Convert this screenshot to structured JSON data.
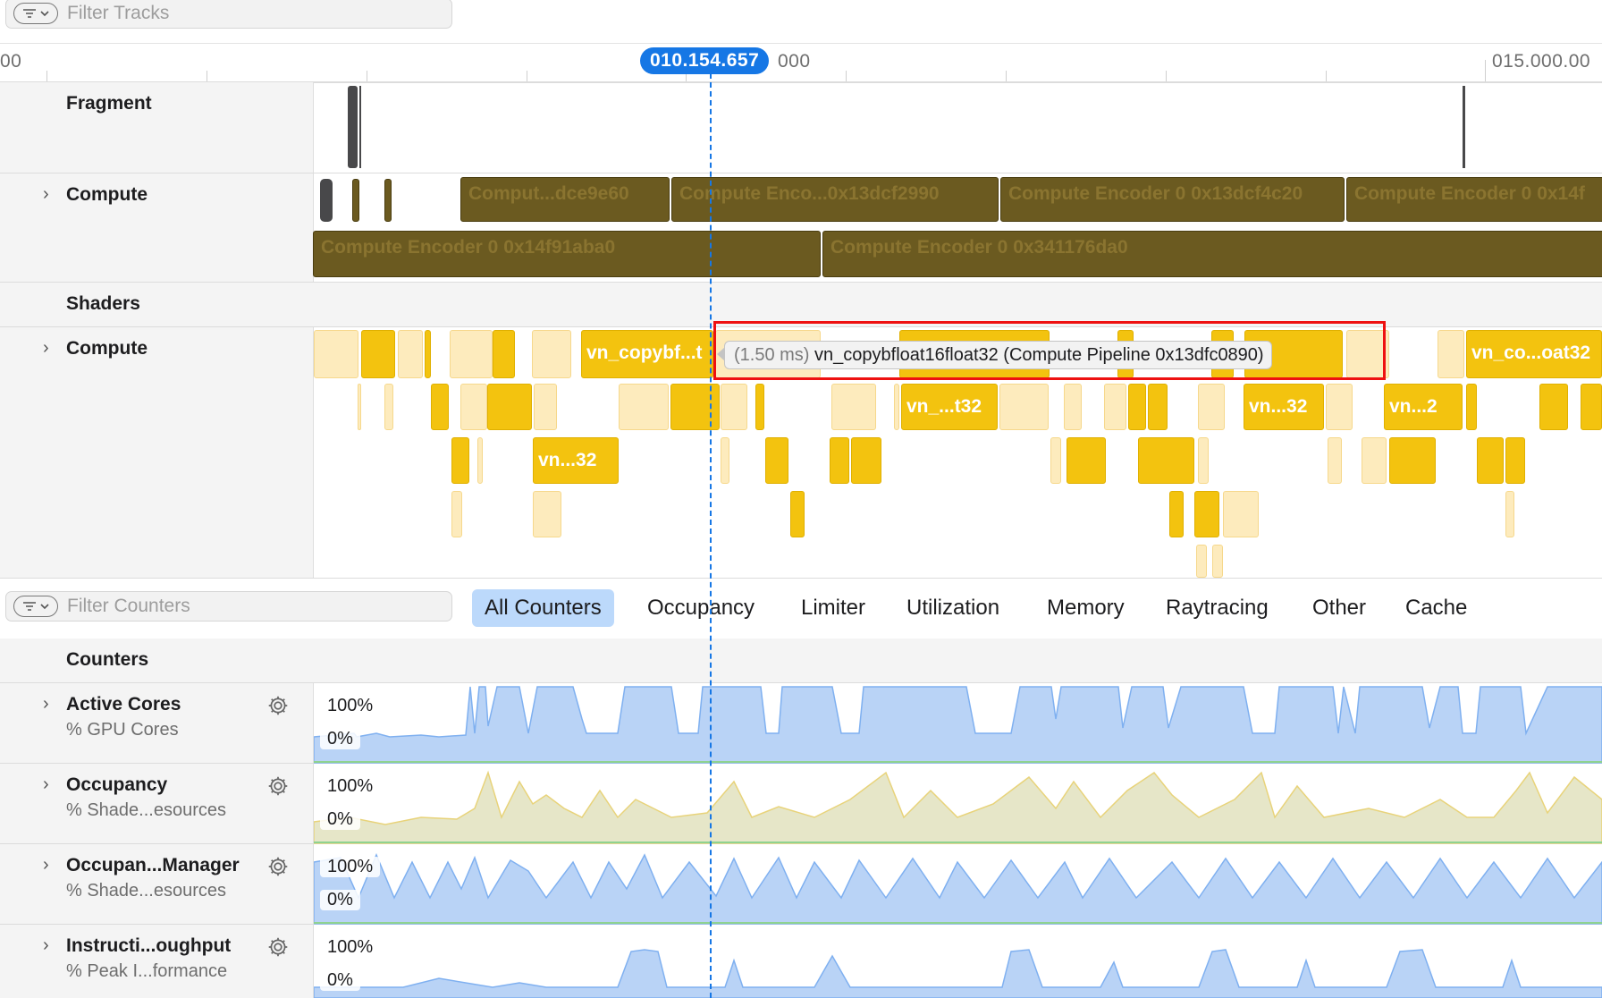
{
  "track_filter": {
    "placeholder": "Filter Tracks"
  },
  "ruler": {
    "left_label": "00",
    "playhead_label": "010.154.657",
    "after_playhead_label": "000",
    "right_label": "015.000.00"
  },
  "tracks": {
    "fragment": {
      "label": "Fragment"
    },
    "compute": {
      "label": "Compute",
      "encoders_row1": [
        "Comput...dce9e60",
        "Compute Enco...0x13dcf2990",
        "Compute Encoder 0 0x13dcf4c20",
        "Compute Encoder 0 0x14f"
      ],
      "encoders_row2": [
        "Compute Encoder 0 0x14f91aba0",
        "Compute Encoder 0 0x341176da0"
      ]
    },
    "shaders": {
      "label": "Shaders"
    },
    "shader_compute": {
      "label": "Compute",
      "labels": [
        "vn_copybf...t",
        "vn_co...oat32",
        "vn_...t32",
        "vn...32",
        "vn...2",
        "vn...32"
      ]
    }
  },
  "tooltip": {
    "duration": "(1.50 ms)",
    "text": "vn_copybfloat16float32 (Compute Pipeline 0x13dfc0890)"
  },
  "counter_filter": {
    "placeholder": "Filter Counters"
  },
  "counter_tabs": [
    "All Counters",
    "Occupancy",
    "Limiter",
    "Utilization",
    "Memory",
    "Raytracing",
    "Other",
    "Cache"
  ],
  "counters": {
    "header": "Counters",
    "rows": [
      {
        "name": "Active Cores",
        "unit": "% GPU Cores",
        "max": "100%",
        "min": "0%"
      },
      {
        "name": "Occupancy",
        "unit": "% Shade...esources",
        "max": "100%",
        "min": "0%"
      },
      {
        "name": "Occupan...Manager",
        "unit": "% Shade...esources",
        "max": "100%",
        "min": "0%"
      },
      {
        "name": "Instructi...oughput",
        "unit": "% Peak I...formance",
        "max": "100%",
        "min": "0%"
      }
    ]
  },
  "colors": {
    "accent": "#1677e5",
    "shader": "#f3c30f",
    "encoder": "#6b5a20",
    "counter_blue": "#7fb0f0",
    "counter_yellow": "#e8d37a",
    "highlight": "#ee1111"
  }
}
